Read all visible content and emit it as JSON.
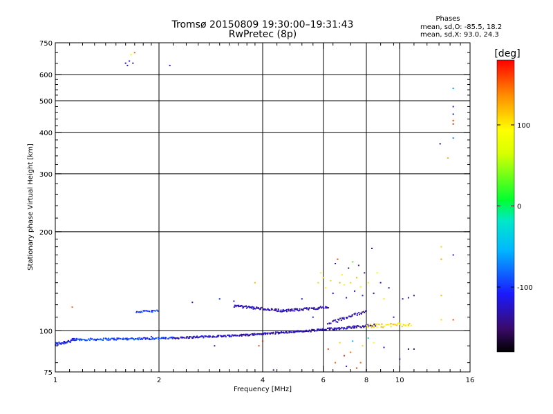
{
  "chart_data": {
    "type": "scatter",
    "title": "Tromsø 20150809 19:30:00–19:31:43",
    "subtitle": "RwPretec (8p)",
    "xlabel": "Frequency [MHz]",
    "ylabel": "Stationary phase Virtual Height [km]",
    "x_scale": "log",
    "y_scale": "log",
    "xlim": [
      1,
      16
    ],
    "ylim": [
      75,
      750
    ],
    "x_ticks": [
      1,
      2,
      4,
      6,
      8,
      10,
      16
    ],
    "x_tick_labels": [
      "1",
      "2",
      "4",
      "6",
      "8",
      "10",
      "16"
    ],
    "x_minor_ticks": [
      1.1,
      1.2,
      1.3,
      1.4,
      1.5,
      1.6,
      1.7,
      1.8,
      1.9,
      2.2,
      2.4,
      2.6,
      2.8,
      3,
      3.2,
      3.4,
      3.6,
      3.8,
      4.4,
      4.8,
      5.2,
      5.6,
      6.4,
      7.2,
      8.8,
      9.6,
      11,
      12,
      13,
      14,
      15
    ],
    "y_ticks": [
      75,
      100,
      200,
      300,
      400,
      500,
      600,
      750
    ],
    "y_tick_labels": [
      "75",
      "100",
      "200",
      "300",
      "400",
      "500",
      "600",
      "750"
    ],
    "y_minor_ticks": [
      80,
      90,
      110,
      120,
      130,
      140,
      150,
      160,
      170,
      180,
      190,
      220,
      240,
      260,
      280,
      320,
      340,
      360,
      380,
      420,
      440,
      460,
      480,
      520,
      540,
      560,
      580,
      650,
      700
    ],
    "grid": true,
    "grid_x": [
      2,
      4,
      6,
      8,
      10
    ],
    "grid_y": [
      100,
      200,
      300,
      400,
      500,
      600
    ],
    "stats_header": "Phases",
    "stats_lines": [
      "mean, sd,O: -85.5, 18.2",
      "mean, sd,X:  93.0, 24.3"
    ],
    "colorbar": {
      "label": "[deg]",
      "range": [
        -180,
        180
      ],
      "ticks": [
        100,
        0,
        -100
      ],
      "tick_labels": [
        "100",
        "0",
        "-100"
      ]
    },
    "traces": [
      {
        "x_start": 1.0,
        "x_end": 1.15,
        "h_start": 91,
        "h_end": 94,
        "phase": -110,
        "n": 40,
        "jitter": 0.012
      },
      {
        "x_start": 1.15,
        "x_end": 2.2,
        "h_start": 94,
        "h_end": 95,
        "phase": -95,
        "n": 120,
        "jitter": 0.007
      },
      {
        "x_start": 2.2,
        "x_end": 3.5,
        "h_start": 95,
        "h_end": 97,
        "phase": -125,
        "n": 90,
        "jitter": 0.006
      },
      {
        "x_start": 3.5,
        "x_end": 5.5,
        "h_start": 97,
        "h_end": 100,
        "phase": -130,
        "n": 100,
        "jitter": 0.006
      },
      {
        "x_start": 5.5,
        "x_end": 8.5,
        "h_start": 100,
        "h_end": 104,
        "phase": -130,
        "n": 90,
        "jitter": 0.008
      },
      {
        "x_start": 1.72,
        "x_end": 1.98,
        "h_start": 114,
        "h_end": 115,
        "phase": -95,
        "n": 22,
        "jitter": 0.006
      },
      {
        "x_start": 3.3,
        "x_end": 4.6,
        "h_start": 119,
        "h_end": 115,
        "phase": -130,
        "n": 70,
        "jitter": 0.008
      },
      {
        "x_start": 4.6,
        "x_end": 6.2,
        "h_start": 115,
        "h_end": 118,
        "phase": -130,
        "n": 60,
        "jitter": 0.008
      },
      {
        "x_start": 6.2,
        "x_end": 8.0,
        "h_start": 105,
        "h_end": 115,
        "phase": -135,
        "n": 40,
        "jitter": 0.01
      },
      {
        "x_start": 8.0,
        "x_end": 10.8,
        "h_start": 103,
        "h_end": 105,
        "phase": 110,
        "n": 40,
        "jitter": 0.015
      }
    ],
    "points": [
      {
        "x": 1.12,
        "y": 118,
        "phase": 150
      },
      {
        "x": 1.6,
        "y": 650,
        "phase": -120
      },
      {
        "x": 1.62,
        "y": 640,
        "phase": -130
      },
      {
        "x": 1.64,
        "y": 660,
        "phase": -110
      },
      {
        "x": 1.66,
        "y": 690,
        "phase": 80
      },
      {
        "x": 1.7,
        "y": 700,
        "phase": 150
      },
      {
        "x": 1.68,
        "y": 650,
        "phase": -120
      },
      {
        "x": 2.15,
        "y": 640,
        "phase": -110
      },
      {
        "x": 1.9,
        "y": 96,
        "phase": -100
      },
      {
        "x": 2.5,
        "y": 122,
        "phase": -110
      },
      {
        "x": 3.0,
        "y": 125,
        "phase": -100
      },
      {
        "x": 3.3,
        "y": 123,
        "phase": -120
      },
      {
        "x": 2.9,
        "y": 90,
        "phase": -120
      },
      {
        "x": 3.8,
        "y": 140,
        "phase": 120
      },
      {
        "x": 3.9,
        "y": 90,
        "phase": 160
      },
      {
        "x": 4.0,
        "y": 93,
        "phase": 170
      },
      {
        "x": 4.3,
        "y": 76,
        "phase": -140
      },
      {
        "x": 5.2,
        "y": 125,
        "phase": -120
      },
      {
        "x": 5.6,
        "y": 110,
        "phase": -110
      },
      {
        "x": 5.8,
        "y": 140,
        "phase": 110
      },
      {
        "x": 5.9,
        "y": 150,
        "phase": 100
      },
      {
        "x": 6.0,
        "y": 145,
        "phase": 110
      },
      {
        "x": 6.1,
        "y": 135,
        "phase": 100
      },
      {
        "x": 6.3,
        "y": 142,
        "phase": 110
      },
      {
        "x": 6.4,
        "y": 130,
        "phase": -110
      },
      {
        "x": 6.5,
        "y": 160,
        "phase": -130
      },
      {
        "x": 6.6,
        "y": 165,
        "phase": 160
      },
      {
        "x": 6.7,
        "y": 140,
        "phase": 120
      },
      {
        "x": 6.8,
        "y": 148,
        "phase": 100
      },
      {
        "x": 6.9,
        "y": 138,
        "phase": 90
      },
      {
        "x": 7.0,
        "y": 126,
        "phase": -120
      },
      {
        "x": 7.1,
        "y": 155,
        "phase": -150
      },
      {
        "x": 7.2,
        "y": 140,
        "phase": 110
      },
      {
        "x": 7.3,
        "y": 162,
        "phase": 30
      },
      {
        "x": 7.4,
        "y": 132,
        "phase": -130
      },
      {
        "x": 7.5,
        "y": 145,
        "phase": 120
      },
      {
        "x": 7.6,
        "y": 158,
        "phase": -150
      },
      {
        "x": 7.7,
        "y": 136,
        "phase": 100
      },
      {
        "x": 7.8,
        "y": 128,
        "phase": -110
      },
      {
        "x": 7.9,
        "y": 150,
        "phase": -140
      },
      {
        "x": 8.1,
        "y": 140,
        "phase": 100
      },
      {
        "x": 8.3,
        "y": 178,
        "phase": -130
      },
      {
        "x": 8.4,
        "y": 130,
        "phase": -120
      },
      {
        "x": 8.6,
        "y": 150,
        "phase": 80
      },
      {
        "x": 8.8,
        "y": 140,
        "phase": -110
      },
      {
        "x": 9.0,
        "y": 125,
        "phase": 100
      },
      {
        "x": 9.3,
        "y": 135,
        "phase": -140
      },
      {
        "x": 9.6,
        "y": 110,
        "phase": -120
      },
      {
        "x": 10.2,
        "y": 125,
        "phase": -120
      },
      {
        "x": 10.6,
        "y": 126,
        "phase": -140
      },
      {
        "x": 11.0,
        "y": 128,
        "phase": -130
      },
      {
        "x": 6.2,
        "y": 88,
        "phase": 160
      },
      {
        "x": 6.5,
        "y": 80,
        "phase": 150
      },
      {
        "x": 6.7,
        "y": 92,
        "phase": 110
      },
      {
        "x": 6.9,
        "y": 84,
        "phase": 170
      },
      {
        "x": 7.0,
        "y": 78,
        "phase": -120
      },
      {
        "x": 7.2,
        "y": 86,
        "phase": 150
      },
      {
        "x": 7.3,
        "y": 93,
        "phase": -60
      },
      {
        "x": 7.5,
        "y": 77,
        "phase": 160
      },
      {
        "x": 7.7,
        "y": 80,
        "phase": 150
      },
      {
        "x": 7.8,
        "y": 90,
        "phase": 110
      },
      {
        "x": 8.0,
        "y": 76,
        "phase": -140
      },
      {
        "x": 8.1,
        "y": 95,
        "phase": -30
      },
      {
        "x": 8.4,
        "y": 92,
        "phase": 90
      },
      {
        "x": 9.0,
        "y": 89,
        "phase": -110
      },
      {
        "x": 10.0,
        "y": 82,
        "phase": -130
      },
      {
        "x": 10.6,
        "y": 88,
        "phase": -150
      },
      {
        "x": 11.0,
        "y": 88,
        "phase": -150
      },
      {
        "x": 13.2,
        "y": 180,
        "phase": 110
      },
      {
        "x": 13.2,
        "y": 165,
        "phase": 130
      },
      {
        "x": 13.2,
        "y": 128,
        "phase": 120
      },
      {
        "x": 13.2,
        "y": 108,
        "phase": 110
      },
      {
        "x": 13.1,
        "y": 370,
        "phase": -150
      },
      {
        "x": 13.8,
        "y": 335,
        "phase": 120
      },
      {
        "x": 14.3,
        "y": 545,
        "phase": -60
      },
      {
        "x": 14.3,
        "y": 480,
        "phase": -110
      },
      {
        "x": 14.3,
        "y": 455,
        "phase": -120
      },
      {
        "x": 14.3,
        "y": 435,
        "phase": 160
      },
      {
        "x": 14.3,
        "y": 425,
        "phase": 170
      },
      {
        "x": 14.3,
        "y": 385,
        "phase": -70
      },
      {
        "x": 14.3,
        "y": 170,
        "phase": -110
      },
      {
        "x": 14.3,
        "y": 108,
        "phase": 160
      }
    ]
  }
}
